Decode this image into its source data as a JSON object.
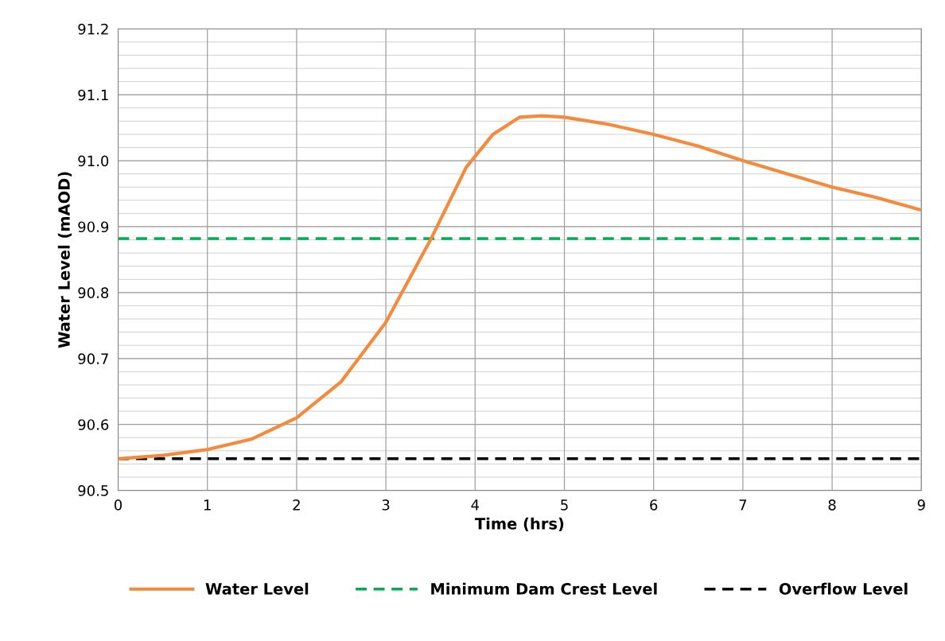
{
  "chart_data": {
    "type": "line",
    "xlabel": "Time (hrs)",
    "ylabel": "Water Level (mAOD)",
    "xlim": [
      0,
      9
    ],
    "ylim": [
      90.5,
      91.2
    ],
    "xticks": [
      0,
      1,
      2,
      3,
      4,
      5,
      6,
      7,
      8,
      9
    ],
    "yticks": [
      {
        "value": 90.5,
        "label": "90.5"
      },
      {
        "value": 90.6,
        "label": "90.6"
      },
      {
        "value": 90.7,
        "label": "90.7"
      },
      {
        "value": 90.8,
        "label": "90.8"
      },
      {
        "value": 90.9,
        "label": "90.9"
      },
      {
        "value": 91.0,
        "label": "91.0"
      },
      {
        "value": 91.1,
        "label": "91.1"
      },
      {
        "value": 91.2,
        "label": "91.2"
      }
    ],
    "x": [
      0,
      0.5,
      1,
      1.5,
      2,
      2.5,
      3,
      3.5,
      3.9,
      4.2,
      4.5,
      4.75,
      5,
      5.5,
      6,
      6.5,
      7,
      7.5,
      8,
      8.5,
      9
    ],
    "series": [
      {
        "name": "Water Level",
        "color": "#f58a3c",
        "values": [
          90.548,
          90.553,
          90.562,
          90.578,
          90.61,
          90.665,
          90.755,
          90.88,
          90.99,
          91.04,
          91.066,
          91.068,
          91.066,
          91.055,
          91.04,
          91.022,
          91.0,
          90.98,
          90.96,
          90.944,
          90.925
        ]
      }
    ],
    "ref_lines": [
      {
        "axis": "y",
        "value": 90.882,
        "label": "Minimum Dam Crest Level",
        "color": "#00b050",
        "line_style": "dashed"
      },
      {
        "axis": "y",
        "value": 90.548,
        "label": "Overflow Level",
        "color": "#000000",
        "line_style": "dashed"
      }
    ],
    "grid": true,
    "legend": "bottom",
    "marker": "none",
    "line_style": "solid"
  }
}
